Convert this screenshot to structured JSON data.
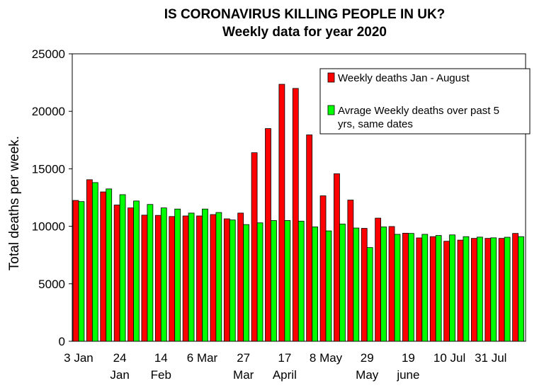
{
  "chart_data": {
    "type": "bar",
    "title": "IS CORONAVIRUS KILLING PEOPLE IN UK?",
    "subtitle": "Weekly data for year 2020",
    "xlabel": "",
    "ylabel": "Total deaths per week.",
    "ylim": [
      0,
      25000
    ],
    "yticks": [
      0,
      5000,
      10000,
      15000,
      20000,
      25000
    ],
    "grid": false,
    "legend_position": "top-right",
    "x_tick_labels": [
      {
        "index": 0,
        "line1": "3 Jan",
        "line2": ""
      },
      {
        "index": 3,
        "line1": "24",
        "line2": "Jan"
      },
      {
        "index": 6,
        "line1": "14",
        "line2": "Feb"
      },
      {
        "index": 9,
        "line1": "6 Mar",
        "line2": ""
      },
      {
        "index": 12,
        "line1": "27",
        "line2": "Mar"
      },
      {
        "index": 15,
        "line1": "17",
        "line2": "April"
      },
      {
        "index": 18,
        "line1": "8 May",
        "line2": ""
      },
      {
        "index": 21,
        "line1": "29",
        "line2": "May"
      },
      {
        "index": 24,
        "line1": "19",
        "line2": "june"
      },
      {
        "index": 27,
        "line1": "10 Jul",
        "line2": ""
      },
      {
        "index": 30,
        "line1": "31 Jul",
        "line2": ""
      }
    ],
    "series": [
      {
        "name": "Weekly deaths Jan - August",
        "color": "#ff0000",
        "values": [
          12250,
          14050,
          12990,
          11850,
          11600,
          10970,
          10950,
          10850,
          10900,
          10900,
          11020,
          10650,
          11150,
          16400,
          18500,
          22350,
          21990,
          17950,
          12650,
          14570,
          12280,
          9820,
          10710,
          9980,
          9400,
          8990,
          9100,
          8700,
          8800,
          8950,
          8950,
          8950,
          9380
        ]
      },
      {
        "name": "Avrage Weekly deaths over past 5 yrs, same dates",
        "color": "#00ff00",
        "values": [
          12150,
          13800,
          13250,
          12750,
          12200,
          11900,
          11600,
          11500,
          11150,
          11500,
          11200,
          10550,
          10150,
          10300,
          10500,
          10500,
          10450,
          9950,
          9600,
          10200,
          9850,
          8150,
          9950,
          9300,
          9380,
          9300,
          9200,
          9250,
          9100,
          9060,
          9000,
          9050,
          9100
        ]
      }
    ]
  }
}
